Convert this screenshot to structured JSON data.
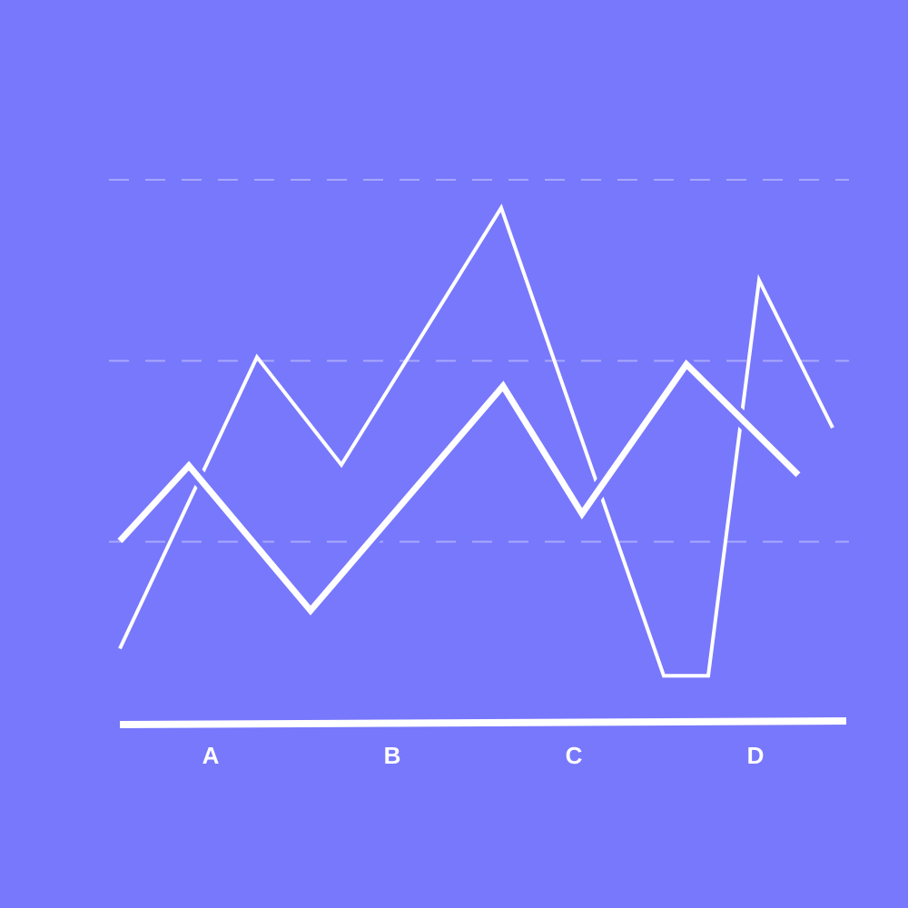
{
  "chart_data": {
    "type": "line",
    "xlim": [
      0,
      4
    ],
    "xticks": [
      {
        "value": 0.5,
        "label": "A"
      },
      {
        "value": 1.5,
        "label": "B"
      },
      {
        "value": 2.5,
        "label": "C"
      },
      {
        "value": 3.5,
        "label": "D"
      }
    ],
    "ylim": [
      0,
      3
    ],
    "yticks": [
      1,
      2,
      3
    ],
    "grid": true,
    "series": [
      {
        "color": "#ffffff",
        "width": "thin",
        "x": [
          0,
          0.755,
          1.22,
          2.1,
          2.995,
          3.24,
          3.52,
          3.925
        ],
        "values": [
          0.41,
          2.02,
          1.425,
          2.845,
          0.26,
          0.26,
          2.445,
          1.63
        ]
      },
      {
        "color": "#ffffff",
        "width": "thick",
        "x": [
          0,
          0.38,
          1.05,
          2.11,
          2.545,
          3.12,
          3.735
        ],
        "values": [
          1.005,
          1.42,
          0.62,
          1.86,
          1.155,
          1.98,
          1.37
        ]
      }
    ]
  }
}
